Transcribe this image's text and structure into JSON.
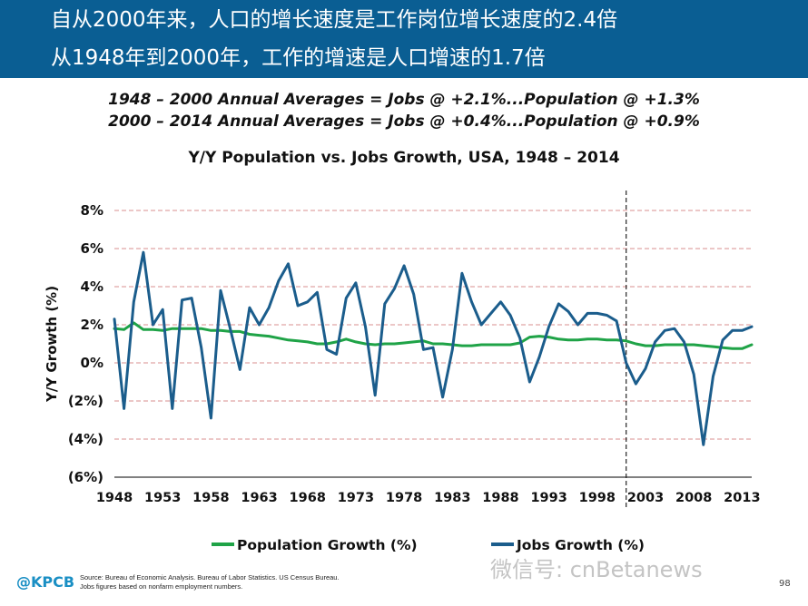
{
  "header": {
    "line1": "自从2000年来，人口的增长速度是工作岗位增长速度的2.4倍",
    "line2": "从1948年到2000年，工作的增速是人口增速的1.7倍"
  },
  "subtitle": {
    "line1": "1948 – 2000 Annual Averages = Jobs @ +2.1%...Population @ +1.3%",
    "line2": "2000 – 2014 Annual Averages = Jobs @ +0.4%...Population @ +0.9%"
  },
  "colors": {
    "header_bg": "#0a5e93",
    "population": "#1fa347",
    "jobs": "#1b5d8c",
    "grid": "#d98f8f"
  },
  "chart_data": {
    "type": "line",
    "title": "Y/Y Population vs. Jobs Growth, USA, 1948 – 2014",
    "xlabel": "",
    "ylabel": "Y/Y Growth (%)",
    "ylim": [
      -6,
      8
    ],
    "xlim": [
      1948,
      2014
    ],
    "y_ticks": [
      8,
      6,
      4,
      2,
      0,
      -2,
      -4,
      -6
    ],
    "y_tick_labels": [
      "8%",
      "6%",
      "4%",
      "2%",
      "0%",
      "(2%)",
      "(4%)",
      "(6%)"
    ],
    "x_ticks": [
      1948,
      1953,
      1958,
      1963,
      1968,
      1973,
      1978,
      1983,
      1988,
      1993,
      1998,
      2003,
      2008,
      2013
    ],
    "x_tick_labels": [
      "1948",
      "1953",
      "1958",
      "1963",
      "1968",
      "1973",
      "1978",
      "1983",
      "1988",
      "1993",
      "1998",
      "2003",
      "2008",
      "2013"
    ],
    "reference_line_year": 2001,
    "x": [
      1948,
      1949,
      1950,
      1951,
      1952,
      1953,
      1954,
      1955,
      1956,
      1957,
      1958,
      1959,
      1960,
      1961,
      1962,
      1963,
      1964,
      1965,
      1966,
      1967,
      1968,
      1969,
      1970,
      1971,
      1972,
      1973,
      1974,
      1975,
      1976,
      1977,
      1978,
      1979,
      1980,
      1981,
      1982,
      1983,
      1984,
      1985,
      1986,
      1987,
      1988,
      1989,
      1990,
      1991,
      1992,
      1993,
      1994,
      1995,
      1996,
      1997,
      1998,
      1999,
      2000,
      2001,
      2002,
      2003,
      2004,
      2005,
      2006,
      2007,
      2008,
      2009,
      2010,
      2011,
      2012,
      2013,
      2014
    ],
    "series": [
      {
        "name": "Population Growth (%)",
        "values": [
          1.8,
          1.75,
          2.1,
          1.75,
          1.75,
          1.7,
          1.8,
          1.8,
          1.8,
          1.8,
          1.7,
          1.7,
          1.65,
          1.65,
          1.5,
          1.45,
          1.4,
          1.3,
          1.2,
          1.15,
          1.1,
          1.0,
          1.0,
          1.1,
          1.25,
          1.1,
          1.0,
          0.95,
          1.0,
          1.0,
          1.05,
          1.1,
          1.15,
          1.0,
          1.0,
          0.95,
          0.9,
          0.9,
          0.95,
          0.95,
          0.95,
          0.95,
          1.05,
          1.35,
          1.4,
          1.35,
          1.25,
          1.2,
          1.2,
          1.25,
          1.25,
          1.2,
          1.2,
          1.15,
          1.0,
          0.9,
          0.9,
          0.95,
          0.95,
          0.95,
          0.95,
          0.9,
          0.85,
          0.8,
          0.75,
          0.75,
          0.95
        ]
      },
      {
        "name": "Jobs Growth (%)",
        "values": [
          2.3,
          -2.4,
          3.2,
          5.8,
          2.0,
          2.8,
          -2.4,
          3.3,
          3.4,
          0.8,
          -2.9,
          3.8,
          1.8,
          -0.35,
          2.9,
          2.0,
          2.9,
          4.3,
          5.2,
          3.0,
          3.2,
          3.7,
          0.7,
          0.45,
          3.4,
          4.2,
          1.9,
          -1.7,
          3.1,
          3.9,
          5.1,
          3.6,
          0.7,
          0.8,
          -1.8,
          0.7,
          4.7,
          3.2,
          2.0,
          2.6,
          3.2,
          2.5,
          1.3,
          -1.0,
          0.3,
          1.9,
          3.1,
          2.7,
          2.0,
          2.6,
          2.6,
          2.5,
          2.2,
          0.0,
          -1.1,
          -0.3,
          1.1,
          1.7,
          1.8,
          1.1,
          -0.6,
          -4.3,
          -0.7,
          1.2,
          1.7,
          1.7,
          1.9
        ]
      }
    ],
    "legend": [
      "Population Growth (%)",
      "Jobs Growth (%)"
    ],
    "legend_position": "bottom"
  },
  "footer": {
    "logo": "@KPCB",
    "source1": "Source: Bureau of Economic Analysis. Bureau of Labor Statistics. US Census Bureau.",
    "source2": "Jobs figures based on nonfarm employment numbers.",
    "watermark": "微信号: cnBetanews",
    "page": "98"
  }
}
